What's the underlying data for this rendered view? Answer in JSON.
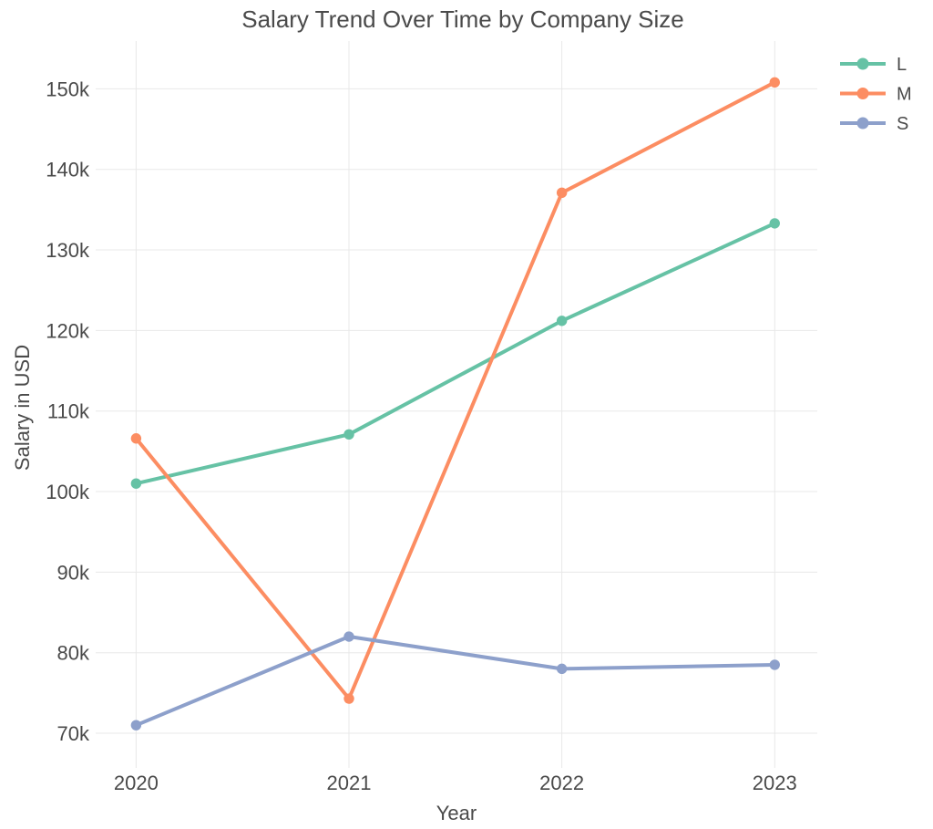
{
  "chart_data": {
    "type": "line",
    "title": "Salary Trend Over Time by Company Size",
    "xlabel": "Year",
    "ylabel": "Salary in USD",
    "x": [
      2020,
      2021,
      2022,
      2023
    ],
    "x_tick_labels": [
      "2020",
      "2021",
      "2022",
      "2023"
    ],
    "y_ticks": {
      "values": [
        70000,
        80000,
        90000,
        100000,
        110000,
        120000,
        130000,
        140000,
        150000
      ],
      "labels": [
        "70k",
        "80k",
        "90k",
        "100k",
        "110k",
        "120k",
        "130k",
        "140k",
        "150k"
      ]
    },
    "series": [
      {
        "name": "L",
        "color": "#66C2A5",
        "values": [
          101000,
          107100,
          121200,
          133300
        ]
      },
      {
        "name": "M",
        "color": "#FC8D62",
        "values": [
          106600,
          74300,
          137100,
          150800
        ]
      },
      {
        "name": "S",
        "color": "#8DA0CB",
        "values": [
          71000,
          82000,
          78000,
          78500
        ]
      }
    ],
    "x_range": [
      2019.81,
      2023.2
    ],
    "y_range": [
      65700,
      154800
    ],
    "grid": true,
    "legend_position": "top-right",
    "mode": "lines+markers"
  },
  "colors": {
    "text": "#4a4a4a",
    "grid": "#e8e8e8",
    "background": "#ffffff"
  }
}
